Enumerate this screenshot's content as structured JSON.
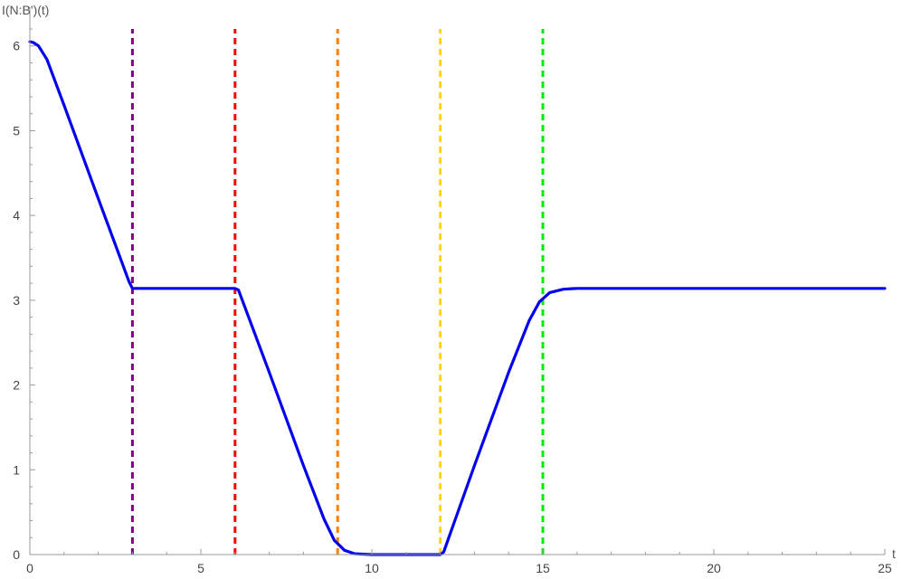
{
  "chart_data": {
    "type": "line",
    "xlabel": "t",
    "ylabel": "I(N:B')(t)",
    "xlim": [
      0,
      25
    ],
    "ylim": [
      0,
      6.2
    ],
    "x_ticks": [
      0,
      5,
      10,
      15,
      20,
      25
    ],
    "x_tick_labels": [
      "0",
      "5",
      "10",
      "15",
      "20",
      "25"
    ],
    "y_ticks": [
      0,
      1,
      2,
      3,
      4,
      5,
      6
    ],
    "y_tick_labels": [
      "0",
      "1",
      "2",
      "3",
      "4",
      "5",
      "6"
    ],
    "grid": false,
    "series": [
      {
        "color": "#0000ee",
        "x": [
          0,
          0.1,
          0.25,
          0.5,
          1,
          2,
          2.9,
          3,
          6,
          6.1,
          7,
          8,
          8.6,
          8.9,
          9.2,
          9.5,
          10,
          12,
          12.1,
          13,
          14,
          14.6,
          14.9,
          15.2,
          15.6,
          16,
          25
        ],
        "y": [
          6.05,
          6.04,
          6.0,
          5.84,
          5.3,
          4.2,
          3.22,
          3.14,
          3.14,
          3.12,
          2.15,
          1.05,
          0.42,
          0.17,
          0.05,
          0.01,
          0.0,
          0.0,
          0.03,
          1.05,
          2.15,
          2.76,
          2.98,
          3.09,
          3.13,
          3.14,
          3.14
        ]
      }
    ],
    "vertical_lines": [
      {
        "x": 3,
        "color": "#800080"
      },
      {
        "x": 6,
        "color": "#ff0000"
      },
      {
        "x": 9,
        "color": "#ff8000"
      },
      {
        "x": 12,
        "color": "#ffd700"
      },
      {
        "x": 15,
        "color": "#00ee00"
      }
    ]
  }
}
